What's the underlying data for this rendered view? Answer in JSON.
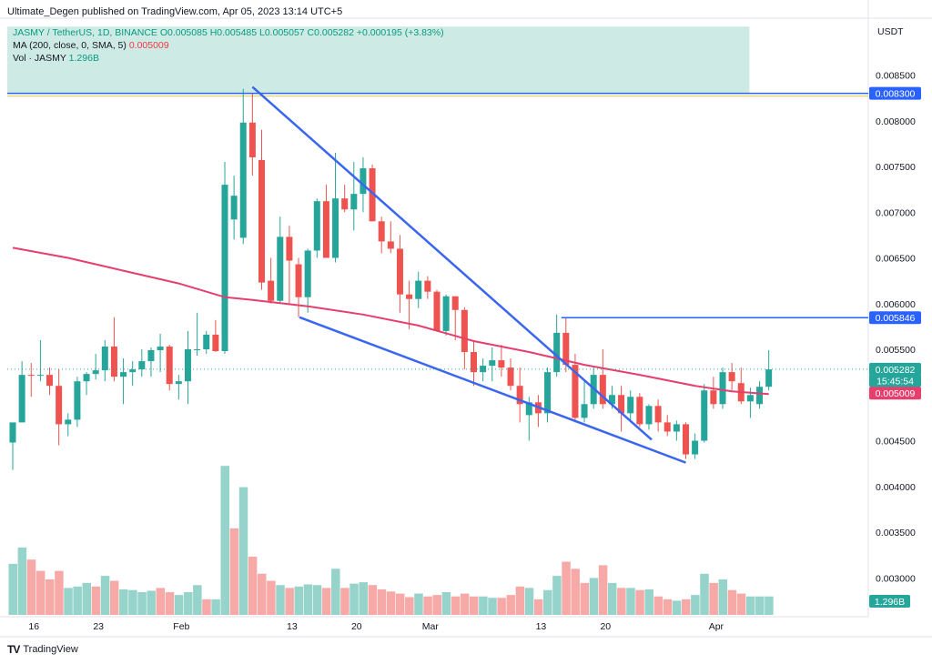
{
  "header": {
    "text": "Ultimate_Degen published on TradingView.com, Apr 05, 2023 13:14 UTC+5"
  },
  "legend": {
    "line1": "JASMY / TetherUS, 1D, BINANCE O0.005085 H0.005485 L0.005057 C0.005282 +0.000195 (+3.83%)",
    "line2_label": "MA (200, close, 0, SMA, 5)",
    "line2_value": "0.005009",
    "line3_label": "Vol · JASMY",
    "line3_value": "1.296B"
  },
  "footer": {
    "logo": "TV",
    "brand": "TradingView"
  },
  "colors": {
    "up": "#26A69A",
    "down": "#EF5350",
    "ma": "#E63E6D",
    "trend": "#3A66F0",
    "level": "#2962FF",
    "highlight": "#CDEBE4"
  },
  "chart_data": {
    "type": "candlestick",
    "symbol": "JASMY / TetherUS",
    "interval": "1D",
    "exchange": "BINANCE",
    "currency_label": "USDT",
    "price_ticks": [
      "0.003000",
      "0.003500",
      "0.004000",
      "0.004500",
      "0.005000",
      "0.005500",
      "0.006000",
      "0.006500",
      "0.007000",
      "0.007500",
      "0.008000",
      "0.008500"
    ],
    "ylim": [
      0.00265,
      0.00903
    ],
    "x_tick_labels": [
      {
        "label": "16",
        "index": 2
      },
      {
        "label": "23",
        "index": 9
      },
      {
        "label": "Feb",
        "index": 18
      },
      {
        "label": "13",
        "index": 30
      },
      {
        "label": "20",
        "index": 37
      },
      {
        "label": "Mar",
        "index": 45
      },
      {
        "label": "13",
        "index": 57
      },
      {
        "label": "20",
        "index": 64
      },
      {
        "label": "Apr",
        "index": 76
      }
    ],
    "candles": [
      {
        "o": 0.00448,
        "h": 0.00467,
        "l": 0.00418,
        "c": 0.0047
      },
      {
        "o": 0.0047,
        "h": 0.00537,
        "l": 0.0047,
        "c": 0.00522
      },
      {
        "o": 0.00522,
        "h": 0.00535,
        "l": 0.00498,
        "c": 0.00521
      },
      {
        "o": 0.00521,
        "h": 0.0056,
        "l": 0.00515,
        "c": 0.00522
      },
      {
        "o": 0.00522,
        "h": 0.0053,
        "l": 0.005,
        "c": 0.0051
      },
      {
        "o": 0.0051,
        "h": 0.00528,
        "l": 0.00445,
        "c": 0.00468
      },
      {
        "o": 0.00468,
        "h": 0.0048,
        "l": 0.00455,
        "c": 0.00473
      },
      {
        "o": 0.00473,
        "h": 0.0052,
        "l": 0.00465,
        "c": 0.00515
      },
      {
        "o": 0.00515,
        "h": 0.00525,
        "l": 0.005,
        "c": 0.00523
      },
      {
        "o": 0.00523,
        "h": 0.00545,
        "l": 0.00517,
        "c": 0.00527
      },
      {
        "o": 0.00527,
        "h": 0.0056,
        "l": 0.00515,
        "c": 0.00553
      },
      {
        "o": 0.00553,
        "h": 0.00585,
        "l": 0.00515,
        "c": 0.0052
      },
      {
        "o": 0.0052,
        "h": 0.0054,
        "l": 0.0049,
        "c": 0.00525
      },
      {
        "o": 0.00525,
        "h": 0.00537,
        "l": 0.0051,
        "c": 0.00528
      },
      {
        "o": 0.00528,
        "h": 0.0055,
        "l": 0.0052,
        "c": 0.00537
      },
      {
        "o": 0.00537,
        "h": 0.00552,
        "l": 0.0052,
        "c": 0.00549
      },
      {
        "o": 0.00549,
        "h": 0.00567,
        "l": 0.00525,
        "c": 0.00553
      },
      {
        "o": 0.00553,
        "h": 0.00555,
        "l": 0.00505,
        "c": 0.00512
      },
      {
        "o": 0.00512,
        "h": 0.00522,
        "l": 0.00495,
        "c": 0.00515
      },
      {
        "o": 0.00515,
        "h": 0.0057,
        "l": 0.0049,
        "c": 0.0055
      },
      {
        "o": 0.0055,
        "h": 0.0059,
        "l": 0.00543,
        "c": 0.0055
      },
      {
        "o": 0.0055,
        "h": 0.0057,
        "l": 0.00545,
        "c": 0.00566
      },
      {
        "o": 0.00566,
        "h": 0.00582,
        "l": 0.00547,
        "c": 0.00548
      },
      {
        "o": 0.00548,
        "h": 0.00755,
        "l": 0.00545,
        "c": 0.0073
      },
      {
        "o": 0.00692,
        "h": 0.0074,
        "l": 0.0067,
        "c": 0.00718
      },
      {
        "o": 0.00672,
        "h": 0.00835,
        "l": 0.00665,
        "c": 0.00798
      },
      {
        "o": 0.00798,
        "h": 0.0083,
        "l": 0.0074,
        "c": 0.0076
      },
      {
        "o": 0.00757,
        "h": 0.0079,
        "l": 0.00615,
        "c": 0.00623
      },
      {
        "o": 0.00625,
        "h": 0.0065,
        "l": 0.006,
        "c": 0.00603
      },
      {
        "o": 0.00603,
        "h": 0.00695,
        "l": 0.006,
        "c": 0.00673
      },
      {
        "o": 0.00673,
        "h": 0.00685,
        "l": 0.006,
        "c": 0.00647
      },
      {
        "o": 0.00643,
        "h": 0.0065,
        "l": 0.00585,
        "c": 0.00607
      },
      {
        "o": 0.00607,
        "h": 0.0066,
        "l": 0.0059,
        "c": 0.00658
      },
      {
        "o": 0.00658,
        "h": 0.00715,
        "l": 0.0065,
        "c": 0.00712
      },
      {
        "o": 0.00712,
        "h": 0.0073,
        "l": 0.0065,
        "c": 0.0065
      },
      {
        "o": 0.0065,
        "h": 0.00765,
        "l": 0.00645,
        "c": 0.00715
      },
      {
        "o": 0.00715,
        "h": 0.0073,
        "l": 0.007,
        "c": 0.00703
      },
      {
        "o": 0.00703,
        "h": 0.00755,
        "l": 0.0068,
        "c": 0.0072
      },
      {
        "o": 0.0072,
        "h": 0.0076,
        "l": 0.007,
        "c": 0.00748
      },
      {
        "o": 0.00748,
        "h": 0.00752,
        "l": 0.0069,
        "c": 0.0069
      },
      {
        "o": 0.0069,
        "h": 0.00695,
        "l": 0.00655,
        "c": 0.00668
      },
      {
        "o": 0.00668,
        "h": 0.0069,
        "l": 0.00655,
        "c": 0.0066
      },
      {
        "o": 0.0066,
        "h": 0.00675,
        "l": 0.0059,
        "c": 0.0061
      },
      {
        "o": 0.0061,
        "h": 0.00625,
        "l": 0.00572,
        "c": 0.00605
      },
      {
        "o": 0.00605,
        "h": 0.00635,
        "l": 0.00595,
        "c": 0.00625
      },
      {
        "o": 0.00625,
        "h": 0.0063,
        "l": 0.00605,
        "c": 0.00613
      },
      {
        "o": 0.00613,
        "h": 0.00615,
        "l": 0.0057,
        "c": 0.0057
      },
      {
        "o": 0.0057,
        "h": 0.0061,
        "l": 0.00565,
        "c": 0.00608
      },
      {
        "o": 0.00608,
        "h": 0.00608,
        "l": 0.0056,
        "c": 0.00593
      },
      {
        "o": 0.00593,
        "h": 0.00596,
        "l": 0.00528,
        "c": 0.00547
      },
      {
        "o": 0.00547,
        "h": 0.0056,
        "l": 0.0051,
        "c": 0.00525
      },
      {
        "o": 0.00525,
        "h": 0.0054,
        "l": 0.00515,
        "c": 0.00532
      },
      {
        "o": 0.00532,
        "h": 0.00552,
        "l": 0.00515,
        "c": 0.00538
      },
      {
        "o": 0.00538,
        "h": 0.00555,
        "l": 0.0052,
        "c": 0.0053
      },
      {
        "o": 0.0053,
        "h": 0.0054,
        "l": 0.00505,
        "c": 0.0051
      },
      {
        "o": 0.0051,
        "h": 0.0053,
        "l": 0.0047,
        "c": 0.0049
      },
      {
        "o": 0.00478,
        "h": 0.00498,
        "l": 0.0045,
        "c": 0.00492
      },
      {
        "o": 0.00492,
        "h": 0.005,
        "l": 0.00465,
        "c": 0.0048
      },
      {
        "o": 0.0048,
        "h": 0.0053,
        "l": 0.0047,
        "c": 0.00525
      },
      {
        "o": 0.00525,
        "h": 0.00588,
        "l": 0.0052,
        "c": 0.00568
      },
      {
        "o": 0.00568,
        "h": 0.00585,
        "l": 0.00525,
        "c": 0.00533
      },
      {
        "o": 0.00533,
        "h": 0.00545,
        "l": 0.0047,
        "c": 0.00475
      },
      {
        "o": 0.00475,
        "h": 0.00515,
        "l": 0.0047,
        "c": 0.0049
      },
      {
        "o": 0.0049,
        "h": 0.0053,
        "l": 0.00485,
        "c": 0.00522
      },
      {
        "o": 0.00522,
        "h": 0.0055,
        "l": 0.00485,
        "c": 0.0049
      },
      {
        "o": 0.0049,
        "h": 0.0051,
        "l": 0.00485,
        "c": 0.005
      },
      {
        "o": 0.005,
        "h": 0.0051,
        "l": 0.0046,
        "c": 0.0048
      },
      {
        "o": 0.0048,
        "h": 0.00505,
        "l": 0.0047,
        "c": 0.00498
      },
      {
        "o": 0.00498,
        "h": 0.00502,
        "l": 0.00465,
        "c": 0.00468
      },
      {
        "o": 0.00468,
        "h": 0.0049,
        "l": 0.00462,
        "c": 0.00488
      },
      {
        "o": 0.00488,
        "h": 0.00495,
        "l": 0.0046,
        "c": 0.0047
      },
      {
        "o": 0.0047,
        "h": 0.00478,
        "l": 0.00455,
        "c": 0.0046
      },
      {
        "o": 0.0046,
        "h": 0.00472,
        "l": 0.0045,
        "c": 0.00468
      },
      {
        "o": 0.00468,
        "h": 0.0047,
        "l": 0.0043,
        "c": 0.00435
      },
      {
        "o": 0.00435,
        "h": 0.00458,
        "l": 0.0043,
        "c": 0.0045
      },
      {
        "o": 0.0045,
        "h": 0.00512,
        "l": 0.00448,
        "c": 0.00505
      },
      {
        "o": 0.00505,
        "h": 0.0052,
        "l": 0.00485,
        "c": 0.0049
      },
      {
        "o": 0.0049,
        "h": 0.0053,
        "l": 0.00485,
        "c": 0.00525
      },
      {
        "o": 0.00525,
        "h": 0.00535,
        "l": 0.00505,
        "c": 0.00515
      },
      {
        "o": 0.00513,
        "h": 0.0053,
        "l": 0.0049,
        "c": 0.00493
      },
      {
        "o": 0.00493,
        "h": 0.00508,
        "l": 0.00475,
        "c": 0.005
      },
      {
        "o": 0.0049,
        "h": 0.00515,
        "l": 0.00485,
        "c": 0.00509
      },
      {
        "o": 0.00509,
        "h": 0.00549,
        "l": 0.00505,
        "c": 0.00528
      }
    ],
    "volume": [
      {
        "v": 0.72,
        "up": true
      },
      {
        "v": 0.95,
        "up": true
      },
      {
        "v": 0.78,
        "up": false
      },
      {
        "v": 0.62,
        "up": false
      },
      {
        "v": 0.5,
        "up": false
      },
      {
        "v": 0.62,
        "up": false
      },
      {
        "v": 0.38,
        "up": true
      },
      {
        "v": 0.4,
        "up": true
      },
      {
        "v": 0.45,
        "up": true
      },
      {
        "v": 0.4,
        "up": false
      },
      {
        "v": 0.55,
        "up": true
      },
      {
        "v": 0.48,
        "up": false
      },
      {
        "v": 0.36,
        "up": true
      },
      {
        "v": 0.35,
        "up": true
      },
      {
        "v": 0.32,
        "up": true
      },
      {
        "v": 0.34,
        "up": true
      },
      {
        "v": 0.38,
        "up": false
      },
      {
        "v": 0.32,
        "up": false
      },
      {
        "v": 0.28,
        "up": true
      },
      {
        "v": 0.32,
        "up": true
      },
      {
        "v": 0.42,
        "up": true
      },
      {
        "v": 0.22,
        "up": false
      },
      {
        "v": 0.22,
        "up": true
      },
      {
        "v": 2.1,
        "up": true
      },
      {
        "v": 1.22,
        "up": false
      },
      {
        "v": 1.8,
        "up": true
      },
      {
        "v": 0.82,
        "up": false
      },
      {
        "v": 0.58,
        "up": false
      },
      {
        "v": 0.48,
        "up": false
      },
      {
        "v": 0.42,
        "up": true
      },
      {
        "v": 0.38,
        "up": false
      },
      {
        "v": 0.4,
        "up": true
      },
      {
        "v": 0.43,
        "up": true
      },
      {
        "v": 0.42,
        "up": true
      },
      {
        "v": 0.38,
        "up": false
      },
      {
        "v": 0.65,
        "up": true
      },
      {
        "v": 0.38,
        "up": false
      },
      {
        "v": 0.44,
        "up": true
      },
      {
        "v": 0.46,
        "up": true
      },
      {
        "v": 0.42,
        "up": false
      },
      {
        "v": 0.36,
        "up": false
      },
      {
        "v": 0.33,
        "up": false
      },
      {
        "v": 0.3,
        "up": false
      },
      {
        "v": 0.25,
        "up": false
      },
      {
        "v": 0.3,
        "up": true
      },
      {
        "v": 0.26,
        "up": false
      },
      {
        "v": 0.28,
        "up": false
      },
      {
        "v": 0.32,
        "up": true
      },
      {
        "v": 0.26,
        "up": false
      },
      {
        "v": 0.3,
        "up": false
      },
      {
        "v": 0.26,
        "up": false
      },
      {
        "v": 0.26,
        "up": true
      },
      {
        "v": 0.24,
        "up": true
      },
      {
        "v": 0.24,
        "up": false
      },
      {
        "v": 0.28,
        "up": false
      },
      {
        "v": 0.4,
        "up": false
      },
      {
        "v": 0.38,
        "up": true
      },
      {
        "v": 0.22,
        "up": false
      },
      {
        "v": 0.35,
        "up": true
      },
      {
        "v": 0.55,
        "up": true
      },
      {
        "v": 0.75,
        "up": false
      },
      {
        "v": 0.65,
        "up": false
      },
      {
        "v": 0.45,
        "up": false
      },
      {
        "v": 0.52,
        "up": true
      },
      {
        "v": 0.7,
        "up": false
      },
      {
        "v": 0.45,
        "up": true
      },
      {
        "v": 0.38,
        "up": false
      },
      {
        "v": 0.38,
        "up": true
      },
      {
        "v": 0.35,
        "up": false
      },
      {
        "v": 0.36,
        "up": true
      },
      {
        "v": 0.26,
        "up": false
      },
      {
        "v": 0.22,
        "up": false
      },
      {
        "v": 0.2,
        "up": true
      },
      {
        "v": 0.22,
        "up": false
      },
      {
        "v": 0.28,
        "up": true
      },
      {
        "v": 0.58,
        "up": true
      },
      {
        "v": 0.45,
        "up": false
      },
      {
        "v": 0.5,
        "up": true
      },
      {
        "v": 0.35,
        "up": false
      },
      {
        "v": 0.3,
        "up": false
      },
      {
        "v": 0.26,
        "up": true
      },
      {
        "v": 0.26,
        "up": true
      },
      {
        "v": 0.26,
        "up": true
      }
    ],
    "ma_points": [
      {
        "i": 0,
        "v": 0.00661
      },
      {
        "i": 6,
        "v": 0.0065
      },
      {
        "i": 12,
        "v": 0.00636
      },
      {
        "i": 18,
        "v": 0.00622
      },
      {
        "i": 23,
        "v": 0.00607
      },
      {
        "i": 26,
        "v": 0.00604
      },
      {
        "i": 32,
        "v": 0.00597
      },
      {
        "i": 38,
        "v": 0.00588
      },
      {
        "i": 44,
        "v": 0.00576
      },
      {
        "i": 50,
        "v": 0.00559
      },
      {
        "i": 56,
        "v": 0.00547
      },
      {
        "i": 62,
        "v": 0.00533
      },
      {
        "i": 68,
        "v": 0.00522
      },
      {
        "i": 74,
        "v": 0.0051
      },
      {
        "i": 78,
        "v": 0.00504
      },
      {
        "i": 82,
        "v": 0.00501
      }
    ],
    "trendlines": [
      {
        "i1": 26.0,
        "p1": 0.00837,
        "i2": 69.3,
        "p2": 0.00451
      },
      {
        "i1": 31.1,
        "p1": 0.00585,
        "i2": 73.0,
        "p2": 0.00426
      }
    ],
    "level_lines": [
      {
        "price": 0.0083,
        "from_index": -1
      },
      {
        "price": 0.005846,
        "from_index": 59.5
      }
    ],
    "highlight_zone": {
      "top_price": 0.00903,
      "bottom_price": 0.0083,
      "end_index": 80
    },
    "last_price_line": 0.005282,
    "price_tags": [
      {
        "text": "0.008300",
        "price": 0.0083,
        "color": "#2962FF"
      },
      {
        "text": "0.005846",
        "price": 0.005846,
        "color": "#2962FF"
      },
      {
        "text": "0.005282",
        "price": 0.005282,
        "color": "#26A69A"
      },
      {
        "text": "15:45:54",
        "price": 0.005157,
        "color": "#26A69A"
      },
      {
        "text": "0.005009",
        "price": 0.00502,
        "color": "#E63E6D"
      }
    ],
    "volume_tag": "1.296B"
  }
}
